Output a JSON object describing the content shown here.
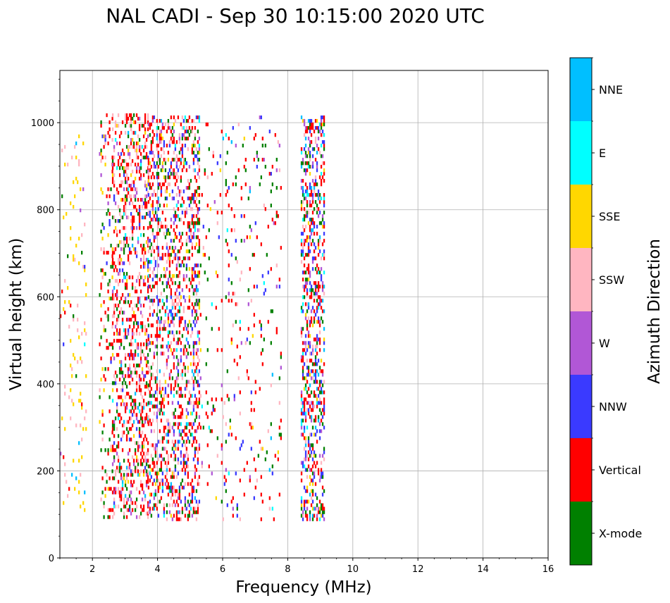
{
  "chart_data": {
    "type": "heatmap",
    "title": "NAL CADI - Sep 30 10:15:00 2020 UTC",
    "xlabel": "Frequency (MHz)",
    "ylabel": "Virtual height (km)",
    "xlim": [
      1,
      16
    ],
    "ylim": [
      0,
      1120
    ],
    "xticks": [
      2,
      4,
      6,
      8,
      10,
      12,
      14,
      16
    ],
    "xtick_labels": [
      "2",
      "4",
      "6",
      "8",
      "10",
      "12",
      "14",
      "16"
    ],
    "yticks": [
      0,
      200,
      400,
      600,
      800,
      1000
    ],
    "ytick_labels": [
      "0",
      "200",
      "400",
      "600",
      "800",
      "1000"
    ],
    "grid": true,
    "colorbar": {
      "label": "Azimuth Direction",
      "categories": [
        "X-mode",
        "Vertical",
        "NNW",
        "W",
        "SSW",
        "SSE",
        "E",
        "NNE"
      ],
      "colors": [
        "#008000",
        "#ff0000",
        "#3a3aff",
        "#b157d6",
        "#ffb6c1",
        "#ffd700",
        "#00ffff",
        "#00bfff"
      ]
    },
    "echo_bands": [
      {
        "f_min": 1.0,
        "f_max": 1.8,
        "h_min": 90,
        "h_max": 980,
        "density": 0.05,
        "weights": [
          0.05,
          0.05,
          0.02,
          0.02,
          0.26,
          0.55,
          0.02,
          0.03
        ]
      },
      {
        "f_min": 2.2,
        "f_max": 2.6,
        "h_min": 90,
        "h_max": 1015,
        "density": 0.12,
        "weights": [
          0.22,
          0.45,
          0.05,
          0.05,
          0.13,
          0.08,
          0.01,
          0.01
        ]
      },
      {
        "f_min": 2.6,
        "f_max": 3.7,
        "h_min": 90,
        "h_max": 1015,
        "density": 0.3,
        "weights": [
          0.16,
          0.4,
          0.05,
          0.1,
          0.2,
          0.05,
          0.02,
          0.02
        ]
      },
      {
        "f_min": 3.7,
        "f_max": 5.3,
        "h_min": 85,
        "h_max": 1015,
        "density": 0.3,
        "weights": [
          0.14,
          0.35,
          0.14,
          0.1,
          0.18,
          0.05,
          0.02,
          0.02
        ]
      },
      {
        "f_min": 5.3,
        "f_max": 7.8,
        "h_min": 85,
        "h_max": 1015,
        "density": 0.045,
        "weights": [
          0.2,
          0.45,
          0.1,
          0.07,
          0.1,
          0.04,
          0.02,
          0.02
        ]
      },
      {
        "f_min": 8.4,
        "f_max": 9.1,
        "h_min": 85,
        "h_max": 1015,
        "density": 0.35,
        "weights": [
          0.14,
          0.3,
          0.2,
          0.12,
          0.08,
          0.06,
          0.05,
          0.05
        ]
      }
    ]
  }
}
